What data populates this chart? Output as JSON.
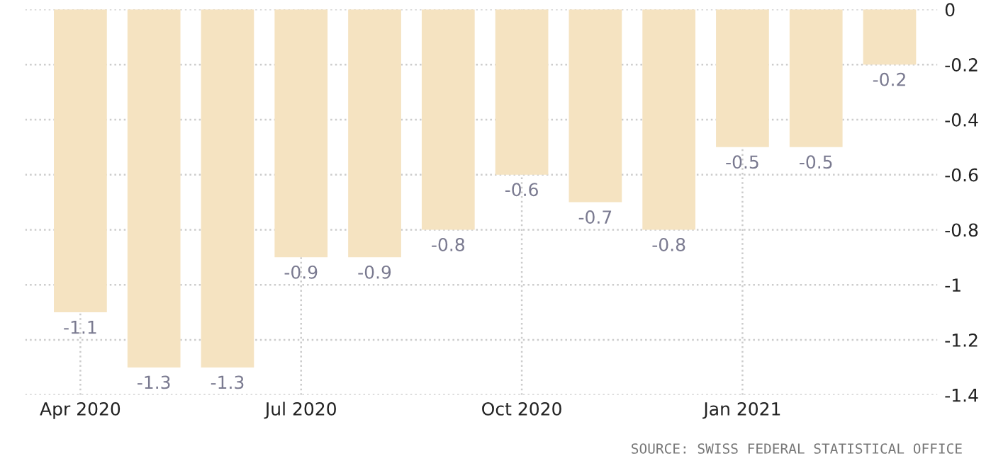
{
  "chart_data": {
    "type": "bar",
    "categories": [
      "Apr 2020",
      null,
      null,
      "Jul 2020",
      null,
      null,
      "Oct 2020",
      null,
      null,
      "Jan 2021",
      null,
      null
    ],
    "values": [
      -1.1,
      -1.3,
      -1.3,
      -0.9,
      -0.9,
      -0.8,
      -0.6,
      -0.7,
      -0.8,
      -0.5,
      -0.5,
      -0.2
    ],
    "color": "#f5e3c1",
    "data_labels": true,
    "ylim": [
      -1.4,
      0
    ],
    "yticks": [
      0,
      -0.2,
      -0.4,
      -0.6,
      -0.8,
      -1,
      -1.2,
      -1.4
    ],
    "grid": true,
    "annotations": [
      "SOURCE: SWISS FEDERAL STATISTICAL OFFICE"
    ]
  }
}
